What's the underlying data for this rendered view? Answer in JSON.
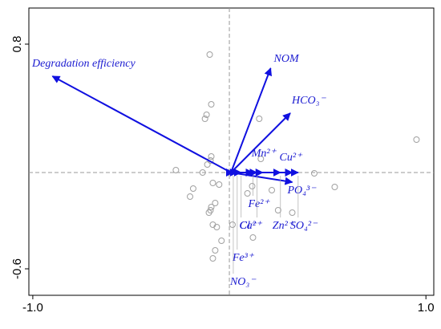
{
  "chart_data": {
    "type": "biplot",
    "xlim": [
      -1.02,
      1.04
    ],
    "ylim": [
      -0.765,
      1.025
    ],
    "xticks": [
      {
        "value": -1.0,
        "label": "-1.0"
      },
      {
        "value": 1.0,
        "label": "1.0"
      }
    ],
    "yticks": [
      -0.6,
      0.8
    ],
    "point_color": "#a0a0a0",
    "arrow_color": "#1010e0",
    "points": {
      "x": [
        -0.1,
        -0.092,
        -0.124,
        -0.116,
        -0.092,
        -0.096,
        -0.112,
        -0.272,
        -0.136,
        0.152,
        0.16,
        -0.084,
        -0.184,
        -0.2,
        -0.052,
        -0.072,
        -0.096,
        -0.104,
        -0.092,
        -0.084,
        -0.064,
        -0.04,
        -0.072,
        -0.084,
        0.016,
        0.092,
        0.116,
        0.12,
        0.216,
        0.248,
        0.32,
        0.432,
        0.536,
        0.952
      ],
      "y": [
        0.735,
        0.425,
        0.335,
        0.36,
        0.1,
        0.075,
        0.05,
        0.015,
        0,
        0.335,
        0.085,
        -0.065,
        -0.1,
        -0.15,
        -0.075,
        -0.19,
        -0.235,
        -0.25,
        -0.215,
        -0.325,
        -0.34,
        -0.425,
        -0.485,
        -0.535,
        -0.325,
        -0.13,
        -0.085,
        -0.405,
        -0.11,
        -0.235,
        -0.25,
        -0.005,
        -0.09,
        0.205
      ]
    },
    "arrows": [
      {
        "name": "Degradation efficiency",
        "x": -0.9,
        "y": 0.6
      },
      {
        "name": "NOM",
        "x": 0.21,
        "y": 0.65
      },
      {
        "name": "HCO₃⁻",
        "x": 0.31,
        "y": 0.37
      },
      {
        "name": "Mn²⁺",
        "x": 0.17,
        "y": 0.0
      },
      {
        "name": "Cu²⁺",
        "x": 0.32,
        "y": 0.0
      },
      {
        "name": "PO₄³⁻",
        "x": 0.32,
        "y": -0.06
      },
      {
        "name": "Fe²⁺",
        "x": 0.12,
        "y": 0.0
      },
      {
        "name": "Cl⁻",
        "x": 0.06,
        "y": 0.0
      },
      {
        "name": "Ca²⁺",
        "x": 0.14,
        "y": 0.0
      },
      {
        "name": "Zn²⁺",
        "x": 0.26,
        "y": 0.0
      },
      {
        "name": "SO₄²⁻",
        "x": 0.35,
        "y": 0.0
      },
      {
        "name": "Fe³⁺",
        "x": 0.04,
        "y": 0.0
      },
      {
        "name": "NO₃⁻",
        "x": 0.02,
        "y": 0.0
      }
    ]
  }
}
